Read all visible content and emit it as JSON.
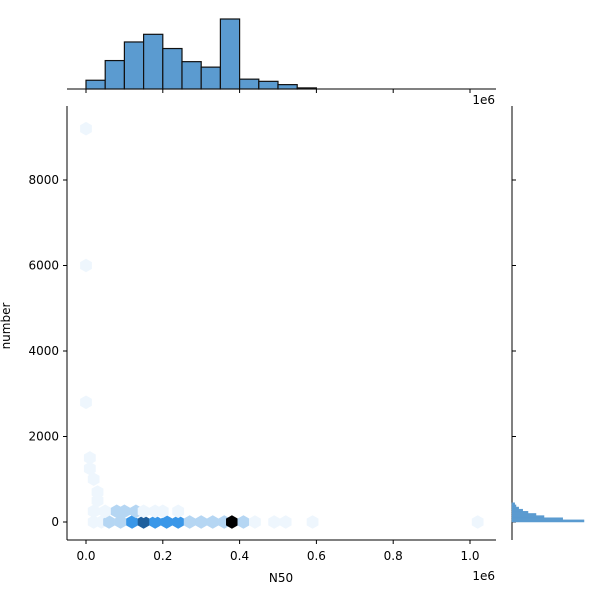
{
  "chart_data": {
    "type": "hexbin",
    "title": "",
    "xlabel": "N50",
    "ylabel": "number",
    "x_offset_label": "1e6",
    "top_offset_label": "1e6",
    "x_range": [
      0.0,
      1.0
    ],
    "y_range": [
      0,
      9500
    ],
    "x_ticks": [
      0.0,
      0.2,
      0.4,
      0.6,
      0.8,
      1.0
    ],
    "x_tick_labels": [
      "0.0",
      "0.2",
      "0.4",
      "0.6",
      "0.8",
      "1.0"
    ],
    "y_ticks": [
      0,
      2000,
      4000,
      6000,
      8000
    ],
    "y_tick_labels": [
      "0",
      "2000",
      "4000",
      "6000",
      "8000"
    ],
    "top_histogram": {
      "bins": [
        {
          "x0": 0.0,
          "x1": 0.05,
          "count": 8
        },
        {
          "x0": 0.05,
          "x1": 0.1,
          "count": 26
        },
        {
          "x0": 0.1,
          "x1": 0.15,
          "count": 43
        },
        {
          "x0": 0.15,
          "x1": 0.2,
          "count": 50
        },
        {
          "x0": 0.2,
          "x1": 0.25,
          "count": 37
        },
        {
          "x0": 0.25,
          "x1": 0.3,
          "count": 25
        },
        {
          "x0": 0.3,
          "x1": 0.35,
          "count": 20
        },
        {
          "x0": 0.35,
          "x1": 0.4,
          "count": 64
        },
        {
          "x0": 0.4,
          "x1": 0.45,
          "count": 9
        },
        {
          "x0": 0.45,
          "x1": 0.5,
          "count": 7
        },
        {
          "x0": 0.5,
          "x1": 0.55,
          "count": 4
        },
        {
          "x0": 0.55,
          "x1": 0.6,
          "count": 1
        },
        {
          "x0": 0.6,
          "x1": 0.65,
          "count": 0
        },
        {
          "x0": 0.65,
          "x1": 0.7,
          "count": 0
        },
        {
          "x0": 0.7,
          "x1": 0.75,
          "count": 0
        },
        {
          "x0": 0.75,
          "x1": 0.8,
          "count": 0
        },
        {
          "x0": 0.8,
          "x1": 0.85,
          "count": 0
        },
        {
          "x0": 0.85,
          "x1": 0.9,
          "count": 0
        },
        {
          "x0": 0.9,
          "x1": 0.95,
          "count": 0
        },
        {
          "x0": 0.95,
          "x1": 1.0,
          "count": 0
        }
      ]
    },
    "right_histogram": {
      "bins": [
        {
          "y0": 400,
          "y1": 450,
          "count": 2
        },
        {
          "y0": 350,
          "y1": 400,
          "count": 3
        },
        {
          "y0": 300,
          "y1": 350,
          "count": 5
        },
        {
          "y0": 250,
          "y1": 300,
          "count": 8
        },
        {
          "y0": 200,
          "y1": 250,
          "count": 12
        },
        {
          "y0": 150,
          "y1": 200,
          "count": 18
        },
        {
          "y0": 100,
          "y1": 150,
          "count": 24
        },
        {
          "y0": 50,
          "y1": 100,
          "count": 38
        },
        {
          "y0": 0,
          "y1": 50,
          "count": 54
        }
      ]
    },
    "hexbins": [
      {
        "x": 0.02,
        "y": 0,
        "count": 1
      },
      {
        "x": 0.04,
        "y": 0,
        "count": 1
      },
      {
        "x": 0.06,
        "y": 0,
        "count": 2
      },
      {
        "x": 0.09,
        "y": 0,
        "count": 4
      },
      {
        "x": 0.12,
        "y": 0,
        "count": 6
      },
      {
        "x": 0.15,
        "y": 0,
        "count": 9
      },
      {
        "x": 0.18,
        "y": 0,
        "count": 5
      },
      {
        "x": 0.21,
        "y": 0,
        "count": 5
      },
      {
        "x": 0.24,
        "y": 0,
        "count": 6
      },
      {
        "x": 0.27,
        "y": 0,
        "count": 4
      },
      {
        "x": 0.3,
        "y": 0,
        "count": 4
      },
      {
        "x": 0.33,
        "y": 0,
        "count": 3
      },
      {
        "x": 0.36,
        "y": 0,
        "count": 3
      },
      {
        "x": 0.38,
        "y": 0,
        "count": 10
      },
      {
        "x": 0.41,
        "y": 0,
        "count": 2
      },
      {
        "x": 0.44,
        "y": 0,
        "count": 1
      },
      {
        "x": 0.49,
        "y": 0,
        "count": 1
      },
      {
        "x": 0.52,
        "y": 0,
        "count": 1
      },
      {
        "x": 0.59,
        "y": 0,
        "count": 1
      },
      {
        "x": 1.02,
        "y": 0,
        "count": 1
      },
      {
        "x": 0.02,
        "y": 250,
        "count": 1
      },
      {
        "x": 0.05,
        "y": 250,
        "count": 1
      },
      {
        "x": 0.08,
        "y": 250,
        "count": 2
      },
      {
        "x": 0.1,
        "y": 250,
        "count": 3
      },
      {
        "x": 0.13,
        "y": 250,
        "count": 2
      },
      {
        "x": 0.15,
        "y": 250,
        "count": 1
      },
      {
        "x": 0.18,
        "y": 250,
        "count": 1
      },
      {
        "x": 0.2,
        "y": 250,
        "count": 1
      },
      {
        "x": 0.24,
        "y": 250,
        "count": 1
      },
      {
        "x": 0.03,
        "y": 500,
        "count": 1
      },
      {
        "x": 0.03,
        "y": 700,
        "count": 1
      },
      {
        "x": 0.02,
        "y": 1000,
        "count": 1
      },
      {
        "x": 0.01,
        "y": 1250,
        "count": 1
      },
      {
        "x": 0.01,
        "y": 1500,
        "count": 1
      },
      {
        "x": 0.0,
        "y": 2800,
        "count": 1
      },
      {
        "x": 0.0,
        "y": 6000,
        "count": 1
      },
      {
        "x": 0.0,
        "y": 9200,
        "count": 1
      }
    ],
    "colors": {
      "hist_fill": "#5b9bd0",
      "hist_stroke": "#111111",
      "hex_max": "#000000",
      "hex_high": "#1f5f9c",
      "hex_mid": "#3a97e8",
      "hex_low": "#b5d6f3",
      "hex_min": "#eef6fd"
    }
  }
}
